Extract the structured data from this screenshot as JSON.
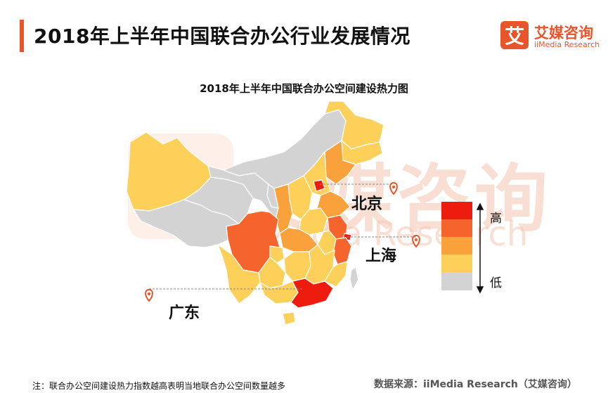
{
  "header": {
    "title": "2018年上半年中国联合办公行业发展情况",
    "logo_mark": "艾",
    "logo_cn": "艾媒咨询",
    "logo_en": "iiMedia Research"
  },
  "watermark": {
    "cn": "艾媒咨询",
    "en": "iiMedia Research"
  },
  "chart_data": {
    "type": "heatmap",
    "title": "2018年上半年中国联合办公空间建设热力图",
    "scale": [
      {
        "level": 4,
        "color": "#ee1c0f"
      },
      {
        "level": 3,
        "color": "#f5642d"
      },
      {
        "level": 2,
        "color": "#f9a23b"
      },
      {
        "level": 1,
        "color": "#fdd05a"
      },
      {
        "level": 0,
        "color": "#d3d3d3"
      }
    ],
    "legend": {
      "high": "高",
      "low": "低",
      "placement": "right"
    },
    "regions": [
      {
        "id": "xinjiang",
        "level": 1
      },
      {
        "id": "xizang",
        "level": 0
      },
      {
        "id": "qinghai",
        "level": 0
      },
      {
        "id": "gansu",
        "level": 0
      },
      {
        "id": "neimenggu",
        "level": 0
      },
      {
        "id": "heilongjiang",
        "level": 1
      },
      {
        "id": "jilin",
        "level": 1
      },
      {
        "id": "liaoning",
        "level": 2
      },
      {
        "id": "hebei",
        "level": 1
      },
      {
        "id": "beijing",
        "level": 4
      },
      {
        "id": "shandong",
        "level": 2
      },
      {
        "id": "shanxi",
        "level": 1
      },
      {
        "id": "shaanxi",
        "level": 2
      },
      {
        "id": "ningxia",
        "level": 0
      },
      {
        "id": "henan",
        "level": 1
      },
      {
        "id": "jiangsu",
        "level": 3
      },
      {
        "id": "shanghai",
        "level": 4
      },
      {
        "id": "anhui",
        "level": 1
      },
      {
        "id": "zhejiang",
        "level": 3
      },
      {
        "id": "hubei",
        "level": 2
      },
      {
        "id": "sichuan",
        "level": 3
      },
      {
        "id": "chongqing",
        "level": 1
      },
      {
        "id": "hunan",
        "level": 1
      },
      {
        "id": "jiangxi",
        "level": 1
      },
      {
        "id": "fujian",
        "level": 1
      },
      {
        "id": "guizhou",
        "level": 1
      },
      {
        "id": "yunnan",
        "level": 1
      },
      {
        "id": "guangxi",
        "level": 1
      },
      {
        "id": "guangdong",
        "level": 4
      },
      {
        "id": "hainan",
        "level": 1
      },
      {
        "id": "taiwan",
        "level": 0
      }
    ],
    "annotations": [
      {
        "id": "beijing",
        "label": "北京"
      },
      {
        "id": "shanghai",
        "label": "上海"
      },
      {
        "id": "guangdong",
        "label": "广东"
      }
    ]
  },
  "footer": {
    "note": "注：联合办公空间建设热力指数越高表明当地联合办公空间数量越多",
    "source": "数据来源：iiMedia Research（艾媒咨询）"
  }
}
